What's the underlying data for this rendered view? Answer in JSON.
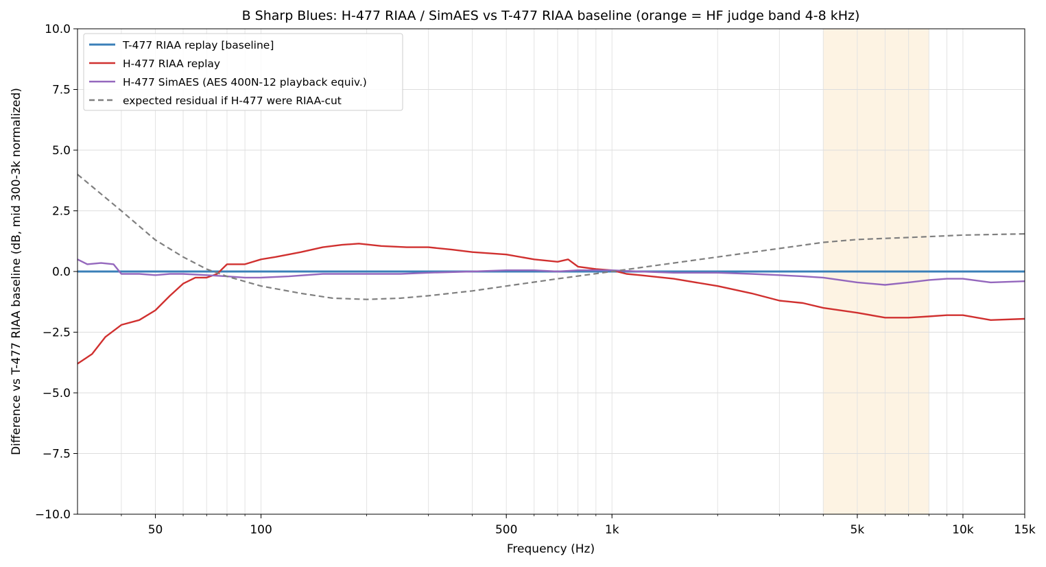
{
  "chart_data": {
    "type": "line",
    "title": "B Sharp Blues: H-477 RIAA / SimAES vs T-477 RIAA baseline (orange = HF judge band 4-8 kHz)",
    "xlabel": "Frequency (Hz)",
    "ylabel": "Difference vs T-477 RIAA baseline (dB, mid 300-3k normalized)",
    "x_scale": "log",
    "xlim": [
      30,
      15000
    ],
    "ylim": [
      -10,
      10
    ],
    "grid": true,
    "legend_position": "upper-left",
    "x_ticks": [
      {
        "value": 50,
        "label": "50"
      },
      {
        "value": 100,
        "label": "100"
      },
      {
        "value": 500,
        "label": "500"
      },
      {
        "value": 1000,
        "label": "1k"
      },
      {
        "value": 5000,
        "label": "5k"
      },
      {
        "value": 10000,
        "label": "10k"
      },
      {
        "value": 15000,
        "label": "15k"
      }
    ],
    "y_ticks": [
      {
        "value": 10,
        "label": "10.0"
      },
      {
        "value": 7.5,
        "label": "7.5"
      },
      {
        "value": 5,
        "label": "5.0"
      },
      {
        "value": 2.5,
        "label": "2.5"
      },
      {
        "value": 0,
        "label": "0.0"
      },
      {
        "value": -2.5,
        "label": "−2.5"
      },
      {
        "value": -5,
        "label": "−5.0"
      },
      {
        "value": -7.5,
        "label": "−7.5"
      },
      {
        "value": -10,
        "label": "−10.0"
      }
    ],
    "shaded_band": {
      "x": [
        4000,
        8000
      ],
      "color": "#fdf3e3"
    },
    "series": [
      {
        "name": "T-477 RIAA replay [baseline]",
        "color": "#3a7fb8",
        "style": "solid",
        "x": [
          30,
          15000
        ],
        "y": [
          0,
          0
        ]
      },
      {
        "name": "H-477 RIAA replay",
        "color": "#d0302f",
        "style": "solid",
        "x": [
          30,
          33,
          36,
          40,
          45,
          50,
          55,
          60,
          65,
          70,
          75,
          80,
          90,
          100,
          110,
          130,
          150,
          170,
          190,
          220,
          260,
          300,
          350,
          400,
          500,
          600,
          700,
          750,
          800,
          900,
          1000,
          1100,
          1200,
          1500,
          2000,
          2500,
          3000,
          3500,
          4000,
          5000,
          6000,
          7000,
          8000,
          9000,
          10000,
          12000,
          15000
        ],
        "y": [
          -3.8,
          -3.4,
          -2.7,
          -2.2,
          -2.0,
          -1.6,
          -1.0,
          -0.5,
          -0.25,
          -0.25,
          -0.1,
          0.3,
          0.3,
          0.5,
          0.6,
          0.8,
          1.0,
          1.1,
          1.15,
          1.05,
          1.0,
          1.0,
          0.9,
          0.8,
          0.7,
          0.5,
          0.4,
          0.5,
          0.2,
          0.1,
          0.05,
          -0.1,
          -0.15,
          -0.3,
          -0.6,
          -0.9,
          -1.2,
          -1.3,
          -1.5,
          -1.7,
          -1.9,
          -1.9,
          -1.85,
          -1.8,
          -1.8,
          -2.0,
          -1.95
        ]
      },
      {
        "name": "H-477 SimAES (AES 400N-12 playback equiv.)",
        "color": "#9467bd",
        "style": "solid",
        "x": [
          30,
          32,
          35,
          38,
          40,
          45,
          50,
          55,
          60,
          70,
          80,
          90,
          100,
          120,
          150,
          200,
          250,
          300,
          400,
          500,
          600,
          700,
          800,
          1000,
          1200,
          1500,
          2000,
          2500,
          3000,
          3500,
          4000,
          5000,
          6000,
          7000,
          8000,
          9000,
          10000,
          12000,
          15000
        ],
        "y": [
          0.5,
          0.3,
          0.35,
          0.3,
          -0.1,
          -0.1,
          -0.15,
          -0.1,
          -0.1,
          -0.15,
          -0.2,
          -0.25,
          -0.25,
          -0.2,
          -0.1,
          -0.1,
          -0.1,
          -0.05,
          0.0,
          0.05,
          0.05,
          0.0,
          0.05,
          0.05,
          0.0,
          -0.05,
          -0.05,
          -0.1,
          -0.15,
          -0.2,
          -0.25,
          -0.45,
          -0.55,
          -0.45,
          -0.35,
          -0.3,
          -0.3,
          -0.45,
          -0.4
        ]
      },
      {
        "name": "expected residual if H-477 were RIAA-cut",
        "color": "#7f7f7f",
        "style": "dashed",
        "x": [
          30,
          40,
          50,
          60,
          70,
          80,
          100,
          130,
          160,
          200,
          250,
          300,
          400,
          500,
          700,
          1000,
          1500,
          2000,
          3000,
          4000,
          5000,
          7000,
          10000,
          15000
        ],
        "y": [
          4.0,
          2.5,
          1.3,
          0.6,
          0.1,
          -0.2,
          -0.6,
          -0.9,
          -1.1,
          -1.15,
          -1.1,
          -1.0,
          -0.8,
          -0.6,
          -0.3,
          0.0,
          0.35,
          0.6,
          0.95,
          1.2,
          1.32,
          1.4,
          1.5,
          1.55
        ]
      }
    ]
  }
}
